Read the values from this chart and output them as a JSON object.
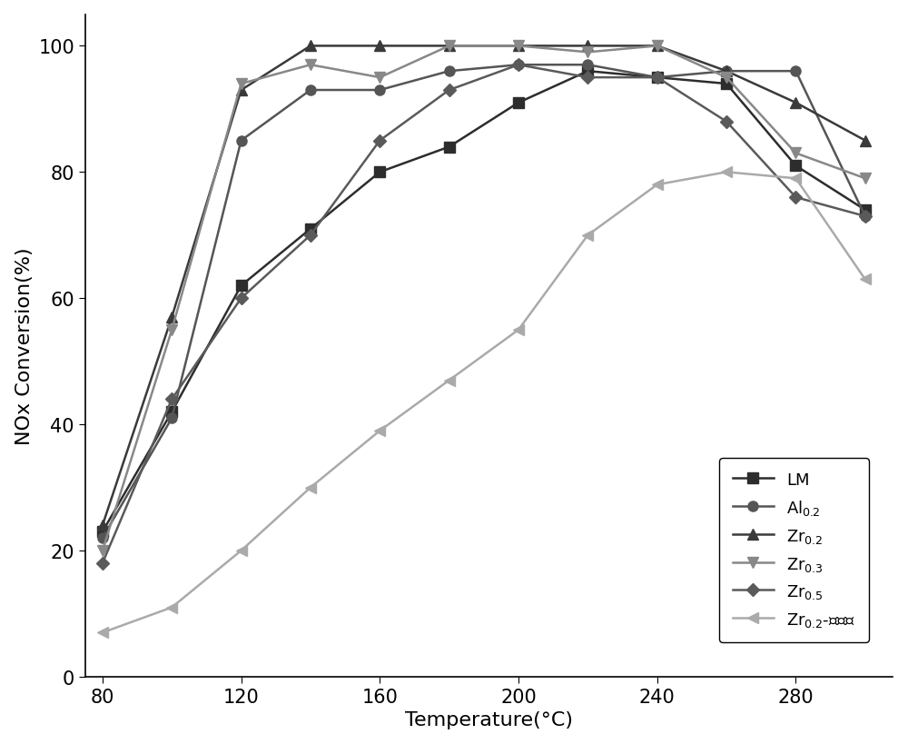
{
  "temperature": [
    80,
    100,
    120,
    140,
    160,
    180,
    200,
    220,
    240,
    260,
    280,
    300
  ],
  "series": [
    {
      "label": "LM",
      "color": "#2d2d2d",
      "marker": "s",
      "markersize": 8,
      "linewidth": 1.8,
      "values": [
        23,
        42,
        62,
        71,
        80,
        84,
        91,
        96,
        95,
        94,
        81,
        74
      ]
    },
    {
      "label": "Al$_{0.2}$",
      "color": "#555555",
      "marker": "o",
      "markersize": 8,
      "linewidth": 1.8,
      "values": [
        22,
        41,
        85,
        93,
        93,
        96,
        97,
        97,
        95,
        96,
        96,
        73
      ]
    },
    {
      "label": "Zr$_{0.2}$",
      "color": "#3a3a3a",
      "marker": "^",
      "markersize": 9,
      "linewidth": 1.8,
      "values": [
        24,
        57,
        93,
        100,
        100,
        100,
        100,
        100,
        100,
        96,
        91,
        85
      ]
    },
    {
      "label": "Zr$_{0.3}$",
      "color": "#888888",
      "marker": "v",
      "markersize": 9,
      "linewidth": 1.8,
      "values": [
        20,
        55,
        94,
        97,
        95,
        100,
        100,
        99,
        100,
        95,
        83,
        79
      ]
    },
    {
      "label": "Zr$_{0.5}$",
      "color": "#5a5a5a",
      "marker": "D",
      "markersize": 7,
      "linewidth": 1.8,
      "values": [
        18,
        44,
        60,
        70,
        85,
        93,
        97,
        95,
        95,
        88,
        76,
        73
      ]
    },
    {
      "label": "Zr$_{0.2}$-有机胺",
      "color": "#aaaaaa",
      "marker": "<",
      "markersize": 9,
      "linewidth": 1.8,
      "values": [
        7,
        11,
        20,
        30,
        39,
        47,
        55,
        70,
        78,
        80,
        79,
        63
      ]
    }
  ],
  "xlabel": "Temperature(°C)",
  "ylabel": "NOx Conversion(%)",
  "xlim": [
    75,
    308
  ],
  "ylim": [
    0,
    105
  ],
  "xticks": [
    80,
    120,
    160,
    200,
    240,
    280
  ],
  "yticks": [
    0,
    20,
    40,
    60,
    80,
    100
  ],
  "axis_fontsize": 16,
  "tick_fontsize": 15,
  "legend_fontsize": 13
}
